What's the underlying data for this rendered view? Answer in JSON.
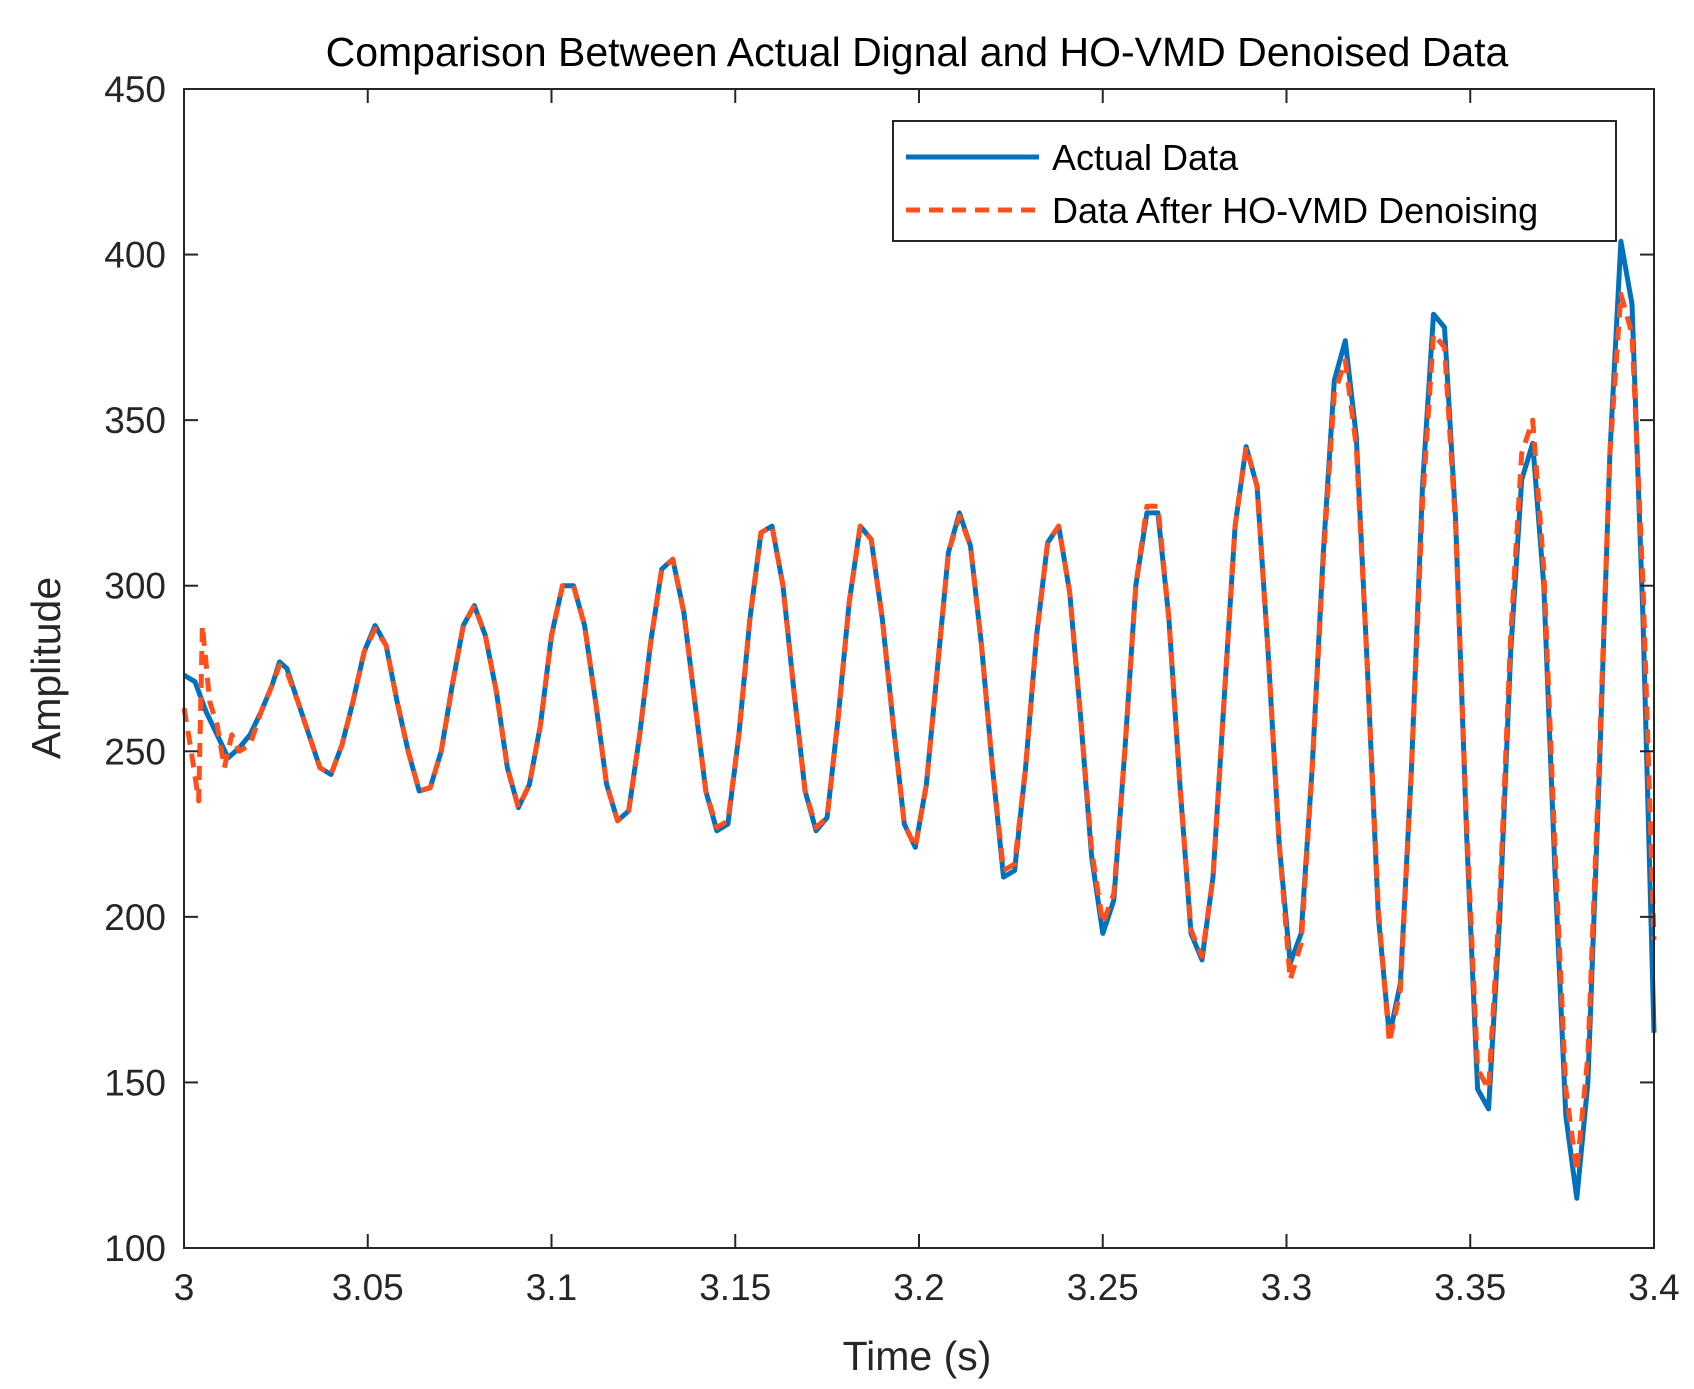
{
  "chart_data": {
    "type": "line",
    "title": "Comparison Between Actual Dignal and HO-VMD Denoised Data",
    "xlabel": "Time (s)",
    "ylabel": "Amplitude",
    "xlim": [
      3.0,
      3.4
    ],
    "ylim": [
      100,
      450
    ],
    "xticks": [
      "3",
      "3.05",
      "3.1",
      "3.15",
      "3.2",
      "3.25",
      "3.3",
      "3.35",
      "3.4"
    ],
    "yticks": [
      "100",
      "150",
      "200",
      "250",
      "300",
      "350",
      "400",
      "450"
    ],
    "legend_position": "top-right",
    "series": [
      {
        "name": "Actual Data",
        "color": "#0072BD",
        "style": "solid",
        "points": [
          [
            3.0,
            273
          ],
          [
            3.003,
            271
          ],
          [
            3.006,
            262
          ],
          [
            3.009,
            255
          ],
          [
            3.012,
            248
          ],
          [
            3.015,
            251
          ],
          [
            3.018,
            255
          ],
          [
            3.021,
            262
          ],
          [
            3.024,
            270
          ],
          [
            3.026,
            277
          ],
          [
            3.028,
            275
          ],
          [
            3.031,
            265
          ],
          [
            3.034,
            255
          ],
          [
            3.037,
            245
          ],
          [
            3.04,
            243
          ],
          [
            3.043,
            252
          ],
          [
            3.046,
            265
          ],
          [
            3.049,
            280
          ],
          [
            3.052,
            288
          ],
          [
            3.055,
            282
          ],
          [
            3.058,
            265
          ],
          [
            3.061,
            250
          ],
          [
            3.064,
            238
          ],
          [
            3.067,
            239
          ],
          [
            3.07,
            250
          ],
          [
            3.073,
            270
          ],
          [
            3.076,
            288
          ],
          [
            3.079,
            294
          ],
          [
            3.082,
            285
          ],
          [
            3.085,
            268
          ],
          [
            3.088,
            245
          ],
          [
            3.091,
            233
          ],
          [
            3.094,
            240
          ],
          [
            3.097,
            258
          ],
          [
            3.1,
            285
          ],
          [
            3.103,
            300
          ],
          [
            3.106,
            300
          ],
          [
            3.109,
            288
          ],
          [
            3.112,
            265
          ],
          [
            3.115,
            240
          ],
          [
            3.118,
            229
          ],
          [
            3.121,
            232
          ],
          [
            3.124,
            255
          ],
          [
            3.127,
            283
          ],
          [
            3.13,
            305
          ],
          [
            3.133,
            308
          ],
          [
            3.136,
            292
          ],
          [
            3.139,
            265
          ],
          [
            3.142,
            238
          ],
          [
            3.145,
            226
          ],
          [
            3.148,
            228
          ],
          [
            3.151,
            255
          ],
          [
            3.154,
            290
          ],
          [
            3.157,
            316
          ],
          [
            3.16,
            318
          ],
          [
            3.163,
            300
          ],
          [
            3.166,
            268
          ],
          [
            3.169,
            238
          ],
          [
            3.172,
            226
          ],
          [
            3.175,
            230
          ],
          [
            3.178,
            260
          ],
          [
            3.181,
            295
          ],
          [
            3.184,
            318
          ],
          [
            3.187,
            314
          ],
          [
            3.19,
            290
          ],
          [
            3.193,
            258
          ],
          [
            3.196,
            228
          ],
          [
            3.199,
            221
          ],
          [
            3.202,
            240
          ],
          [
            3.205,
            275
          ],
          [
            3.208,
            310
          ],
          [
            3.211,
            322
          ],
          [
            3.214,
            312
          ],
          [
            3.217,
            282
          ],
          [
            3.22,
            245
          ],
          [
            3.223,
            212
          ],
          [
            3.226,
            214
          ],
          [
            3.229,
            245
          ],
          [
            3.232,
            285
          ],
          [
            3.235,
            313
          ],
          [
            3.238,
            318
          ],
          [
            3.241,
            298
          ],
          [
            3.244,
            260
          ],
          [
            3.247,
            218
          ],
          [
            3.25,
            195
          ],
          [
            3.253,
            205
          ],
          [
            3.256,
            250
          ],
          [
            3.259,
            300
          ],
          [
            3.262,
            322
          ],
          [
            3.265,
            322
          ],
          [
            3.268,
            290
          ],
          [
            3.271,
            240
          ],
          [
            3.274,
            195
          ],
          [
            3.277,
            187
          ],
          [
            3.28,
            212
          ],
          [
            3.283,
            265
          ],
          [
            3.286,
            318
          ],
          [
            3.289,
            342
          ],
          [
            3.292,
            330
          ],
          [
            3.295,
            280
          ],
          [
            3.298,
            222
          ],
          [
            3.301,
            186
          ],
          [
            3.304,
            195
          ],
          [
            3.307,
            245
          ],
          [
            3.31,
            310
          ],
          [
            3.313,
            362
          ],
          [
            3.316,
            374
          ],
          [
            3.319,
            345
          ],
          [
            3.322,
            275
          ],
          [
            3.325,
            200
          ],
          [
            3.328,
            164
          ],
          [
            3.331,
            180
          ],
          [
            3.334,
            245
          ],
          [
            3.337,
            330
          ],
          [
            3.34,
            382
          ],
          [
            3.343,
            378
          ],
          [
            3.346,
            320
          ],
          [
            3.349,
            225
          ],
          [
            3.352,
            148
          ],
          [
            3.355,
            142
          ],
          [
            3.358,
            200
          ],
          [
            3.361,
            280
          ],
          [
            3.364,
            332
          ],
          [
            3.367,
            343
          ],
          [
            3.37,
            300
          ],
          [
            3.373,
            215
          ],
          [
            3.376,
            140
          ],
          [
            3.379,
            115
          ],
          [
            3.382,
            150
          ],
          [
            3.385,
            240
          ],
          [
            3.388,
            340
          ],
          [
            3.391,
            404
          ],
          [
            3.394,
            385
          ],
          [
            3.397,
            290
          ],
          [
            3.4,
            165
          ]
        ]
      },
      {
        "name": "Data After HO-VMD Denoising",
        "color": "#FF4F1A",
        "style": "dashed",
        "points": [
          [
            3.0,
            263
          ],
          [
            3.002,
            250
          ],
          [
            3.004,
            235
          ],
          [
            3.005,
            288
          ],
          [
            3.007,
            265
          ],
          [
            3.009,
            258
          ],
          [
            3.011,
            245
          ],
          [
            3.013,
            255
          ],
          [
            3.015,
            250
          ],
          [
            3.018,
            252
          ],
          [
            3.021,
            262
          ],
          [
            3.024,
            270
          ],
          [
            3.026,
            276
          ],
          [
            3.028,
            274
          ],
          [
            3.031,
            265
          ],
          [
            3.034,
            255
          ],
          [
            3.037,
            245
          ],
          [
            3.04,
            243
          ],
          [
            3.043,
            252
          ],
          [
            3.046,
            265
          ],
          [
            3.049,
            280
          ],
          [
            3.052,
            287
          ],
          [
            3.055,
            282
          ],
          [
            3.058,
            265
          ],
          [
            3.061,
            250
          ],
          [
            3.064,
            238
          ],
          [
            3.067,
            239
          ],
          [
            3.07,
            250
          ],
          [
            3.073,
            270
          ],
          [
            3.076,
            288
          ],
          [
            3.079,
            294
          ],
          [
            3.082,
            285
          ],
          [
            3.085,
            268
          ],
          [
            3.088,
            245
          ],
          [
            3.091,
            233
          ],
          [
            3.094,
            240
          ],
          [
            3.097,
            258
          ],
          [
            3.1,
            285
          ],
          [
            3.103,
            300
          ],
          [
            3.106,
            300
          ],
          [
            3.109,
            288
          ],
          [
            3.112,
            265
          ],
          [
            3.115,
            240
          ],
          [
            3.118,
            229
          ],
          [
            3.121,
            232
          ],
          [
            3.124,
            255
          ],
          [
            3.127,
            283
          ],
          [
            3.13,
            305
          ],
          [
            3.133,
            308
          ],
          [
            3.136,
            292
          ],
          [
            3.139,
            265
          ],
          [
            3.142,
            238
          ],
          [
            3.145,
            227
          ],
          [
            3.148,
            229
          ],
          [
            3.151,
            255
          ],
          [
            3.154,
            290
          ],
          [
            3.157,
            316
          ],
          [
            3.16,
            318
          ],
          [
            3.163,
            300
          ],
          [
            3.166,
            268
          ],
          [
            3.169,
            238
          ],
          [
            3.172,
            227
          ],
          [
            3.175,
            230
          ],
          [
            3.178,
            260
          ],
          [
            3.181,
            295
          ],
          [
            3.184,
            318
          ],
          [
            3.187,
            314
          ],
          [
            3.19,
            290
          ],
          [
            3.193,
            258
          ],
          [
            3.196,
            228
          ],
          [
            3.199,
            221
          ],
          [
            3.202,
            240
          ],
          [
            3.205,
            275
          ],
          [
            3.208,
            310
          ],
          [
            3.211,
            321
          ],
          [
            3.214,
            312
          ],
          [
            3.217,
            282
          ],
          [
            3.22,
            245
          ],
          [
            3.223,
            214
          ],
          [
            3.226,
            216
          ],
          [
            3.229,
            245
          ],
          [
            3.232,
            285
          ],
          [
            3.235,
            313
          ],
          [
            3.238,
            318
          ],
          [
            3.241,
            298
          ],
          [
            3.244,
            260
          ],
          [
            3.247,
            220
          ],
          [
            3.25,
            198
          ],
          [
            3.253,
            207
          ],
          [
            3.256,
            250
          ],
          [
            3.259,
            300
          ],
          [
            3.262,
            324
          ],
          [
            3.265,
            324
          ],
          [
            3.268,
            290
          ],
          [
            3.271,
            240
          ],
          [
            3.274,
            196
          ],
          [
            3.277,
            188
          ],
          [
            3.28,
            212
          ],
          [
            3.283,
            265
          ],
          [
            3.286,
            318
          ],
          [
            3.289,
            342
          ],
          [
            3.292,
            330
          ],
          [
            3.295,
            280
          ],
          [
            3.298,
            222
          ],
          [
            3.301,
            181
          ],
          [
            3.304,
            192
          ],
          [
            3.307,
            245
          ],
          [
            3.31,
            308
          ],
          [
            3.313,
            358
          ],
          [
            3.316,
            368
          ],
          [
            3.319,
            342
          ],
          [
            3.322,
            275
          ],
          [
            3.325,
            202
          ],
          [
            3.328,
            162
          ],
          [
            3.331,
            178
          ],
          [
            3.334,
            245
          ],
          [
            3.337,
            325
          ],
          [
            3.34,
            376
          ],
          [
            3.343,
            372
          ],
          [
            3.346,
            318
          ],
          [
            3.349,
            228
          ],
          [
            3.352,
            154
          ],
          [
            3.355,
            148
          ],
          [
            3.358,
            205
          ],
          [
            3.361,
            285
          ],
          [
            3.364,
            340
          ],
          [
            3.367,
            350
          ],
          [
            3.37,
            305
          ],
          [
            3.373,
            222
          ],
          [
            3.376,
            148
          ],
          [
            3.379,
            123
          ],
          [
            3.382,
            158
          ],
          [
            3.385,
            245
          ],
          [
            3.388,
            340
          ],
          [
            3.391,
            388
          ],
          [
            3.394,
            376
          ],
          [
            3.397,
            300
          ],
          [
            3.4,
            193
          ]
        ]
      }
    ]
  }
}
